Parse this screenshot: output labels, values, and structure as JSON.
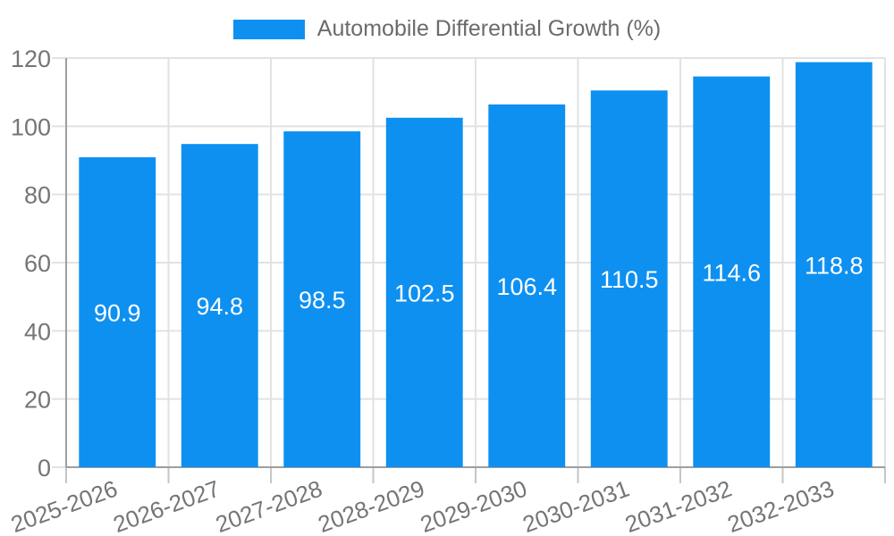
{
  "legend": {
    "label": "Automobile Differential Growth (%)"
  },
  "chart_data": {
    "type": "bar",
    "title": "",
    "series_name": "Automobile Differential Growth (%)",
    "categories": [
      "2025-2026",
      "2026-2027",
      "2027-2028",
      "2028-2029",
      "2029-2030",
      "2030-2031",
      "2031-2032",
      "2032-2033"
    ],
    "values": [
      90.9,
      94.8,
      98.5,
      102.5,
      106.4,
      110.5,
      114.6,
      118.8
    ],
    "value_labels": [
      "90.9",
      "94.8",
      "98.5",
      "102.5",
      "106.4",
      "110.5",
      "114.6",
      "118.8"
    ],
    "yticks": [
      0,
      20,
      40,
      60,
      80,
      100,
      120
    ],
    "ytick_labels": [
      "0",
      "20",
      "40",
      "60",
      "80",
      "100",
      "120"
    ],
    "ylim": [
      0,
      120
    ],
    "xlabel": "",
    "ylabel": "",
    "grid": true,
    "legend_position": "top",
    "value_labels_inside_bars": true,
    "x_label_rotation_deg": -20,
    "colors": {
      "bar": "#0e90f1",
      "grid": "#e2e2e2",
      "axis_line": "#9e9e9e",
      "tick_mark": "#c6c6c6",
      "axis_text": "#757575",
      "legend_text": "#6b6b6b",
      "value_label_text": "#ffffff",
      "background": "#ffffff"
    }
  }
}
